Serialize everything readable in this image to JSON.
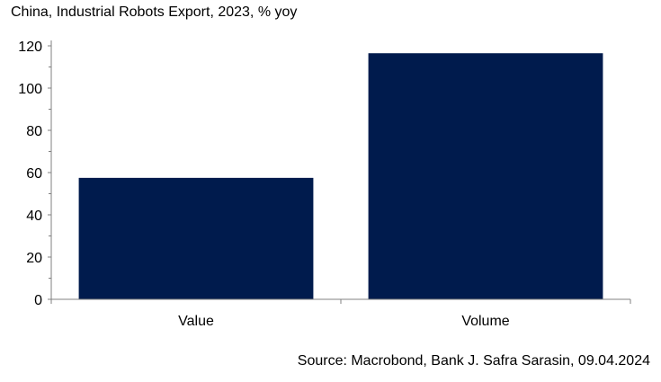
{
  "chart_data": {
    "type": "bar",
    "title": "China, Industrial Robots Export, 2023, % yoy",
    "categories": [
      "Value",
      "Volume"
    ],
    "values": [
      57.5,
      116.5
    ],
    "ylim": [
      0,
      120
    ],
    "yticks": [
      "0",
      "20",
      "40",
      "60",
      "80",
      "100",
      "120"
    ],
    "xlabel": "",
    "ylabel": "",
    "bar_color": "#001b4d",
    "source": "Source: Macrobond, Bank J. Safra Sarasin, 09.04.2024"
  }
}
